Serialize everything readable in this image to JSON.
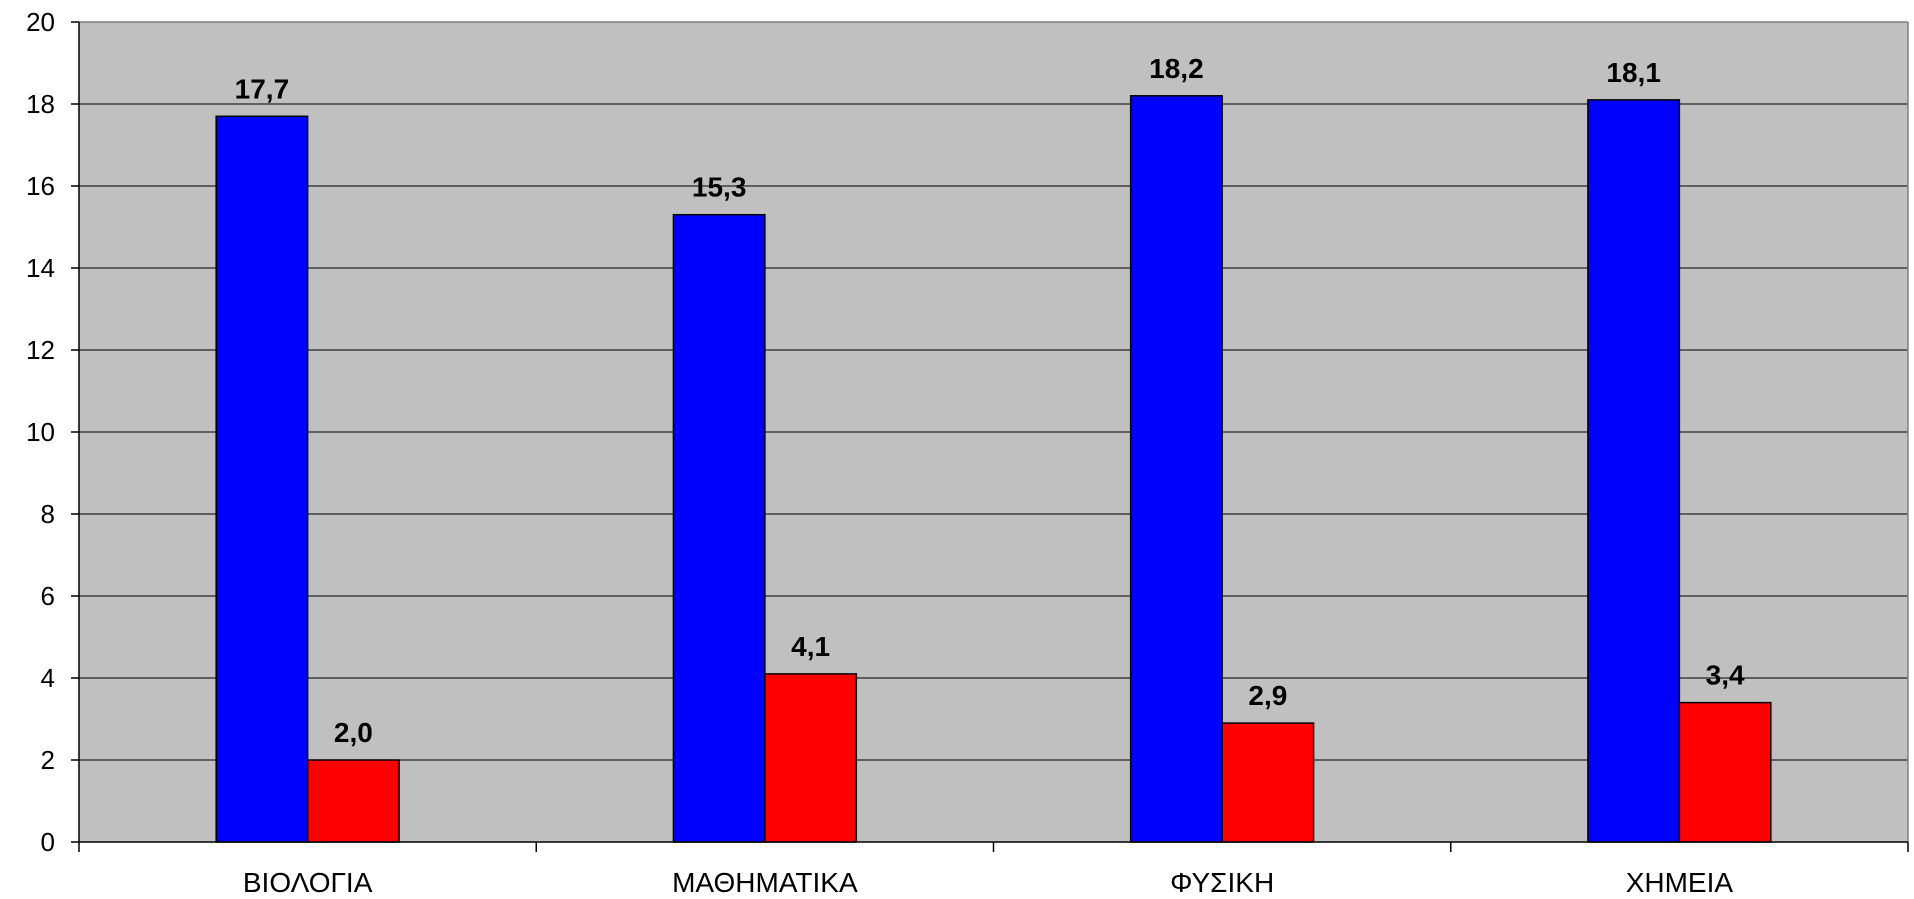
{
  "chart_data": {
    "type": "bar",
    "categories": [
      "ΒΙΟΛΟΓΙΑ",
      "ΜΑΘΗΜΑΤΙΚΑ",
      "ΦΥΣΙΚΗ",
      "ΧΗΜΕΙΑ"
    ],
    "series": [
      {
        "values": [
          17.7,
          15.3,
          18.2,
          18.1
        ],
        "labels": [
          "17,7",
          "15,3",
          "18,2",
          "18,1"
        ],
        "color": "#0000ff"
      },
      {
        "values": [
          2.0,
          4.1,
          2.9,
          3.4
        ],
        "labels": [
          "2,0",
          "4,1",
          "2,9",
          "3,4"
        ],
        "color": "#ff0000"
      }
    ],
    "yticks": [
      "0",
      "2",
      "4",
      "6",
      "8",
      "10",
      "12",
      "14",
      "16",
      "18",
      "20"
    ],
    "ylim": [
      0,
      20
    ],
    "grid": true,
    "plot_background": "#c0c0c0",
    "title": "",
    "xlabel": "",
    "ylabel": ""
  }
}
